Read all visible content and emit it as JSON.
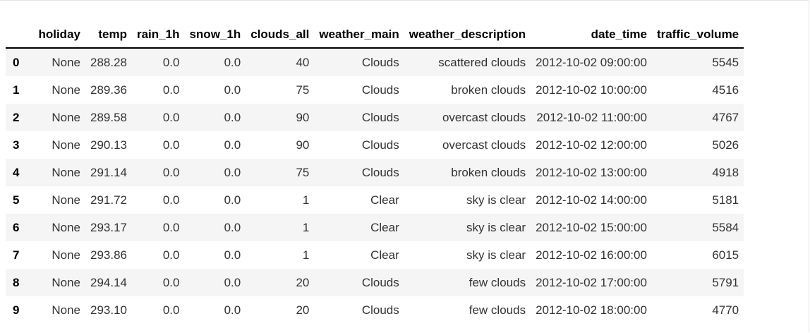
{
  "dataframe": {
    "columns": [
      "",
      "holiday",
      "temp",
      "rain_1h",
      "snow_1h",
      "clouds_all",
      "weather_main",
      "weather_description",
      "date_time",
      "traffic_volume"
    ],
    "rows": [
      [
        "0",
        "None",
        "288.28",
        "0.0",
        "0.0",
        "40",
        "Clouds",
        "scattered clouds",
        "2012-10-02 09:00:00",
        "5545"
      ],
      [
        "1",
        "None",
        "289.36",
        "0.0",
        "0.0",
        "75",
        "Clouds",
        "broken clouds",
        "2012-10-02 10:00:00",
        "4516"
      ],
      [
        "2",
        "None",
        "289.58",
        "0.0",
        "0.0",
        "90",
        "Clouds",
        "overcast clouds",
        "2012-10-02 11:00:00",
        "4767"
      ],
      [
        "3",
        "None",
        "290.13",
        "0.0",
        "0.0",
        "90",
        "Clouds",
        "overcast clouds",
        "2012-10-02 12:00:00",
        "5026"
      ],
      [
        "4",
        "None",
        "291.14",
        "0.0",
        "0.0",
        "75",
        "Clouds",
        "broken clouds",
        "2012-10-02 13:00:00",
        "4918"
      ],
      [
        "5",
        "None",
        "291.72",
        "0.0",
        "0.0",
        "1",
        "Clear",
        "sky is clear",
        "2012-10-02 14:00:00",
        "5181"
      ],
      [
        "6",
        "None",
        "293.17",
        "0.0",
        "0.0",
        "1",
        "Clear",
        "sky is clear",
        "2012-10-02 15:00:00",
        "5584"
      ],
      [
        "7",
        "None",
        "293.86",
        "0.0",
        "0.0",
        "1",
        "Clear",
        "sky is clear",
        "2012-10-02 16:00:00",
        "6015"
      ],
      [
        "8",
        "None",
        "294.14",
        "0.0",
        "0.0",
        "20",
        "Clouds",
        "few clouds",
        "2012-10-02 17:00:00",
        "5791"
      ],
      [
        "9",
        "None",
        "293.10",
        "0.0",
        "0.0",
        "20",
        "Clouds",
        "few clouds",
        "2012-10-02 18:00:00",
        "4770"
      ]
    ]
  },
  "colors": {
    "stripe": "#f5f5f5",
    "header_rule": "#000000",
    "cell_text": "#333333"
  }
}
